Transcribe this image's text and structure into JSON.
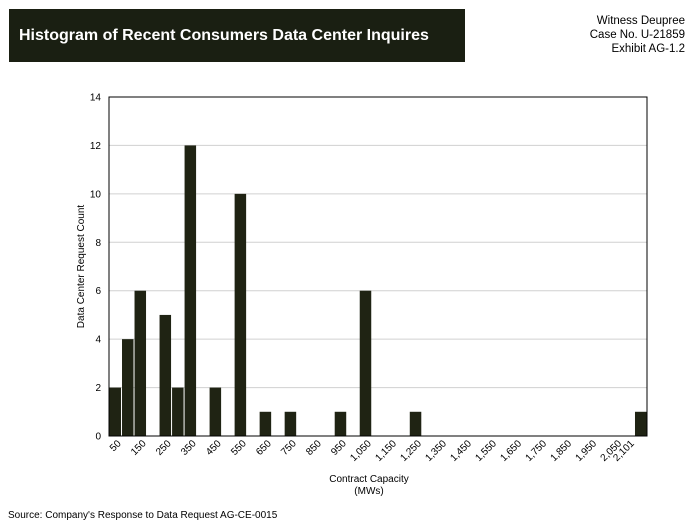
{
  "title": "Histogram of Recent Consumers Data Center Inquires",
  "exhibit": {
    "witness": "Witness Deupree",
    "case": "Case No. U-21859",
    "exhibit": "Exhibit AG-1.2"
  },
  "source": "Source: Company's Response to Data Request AG-CE-0015",
  "colors": {
    "banner": "#1a1f12",
    "bar": "#1f2313",
    "grid": "#d0d0d0"
  },
  "chart_data": {
    "type": "bar",
    "title": "Histogram of Recent Consumers Data Center Inquires",
    "xlabel": "Contract Capacity",
    "xlabel_unit": "(MWs)",
    "ylabel": "Data Center Request Count",
    "ylim": [
      0,
      14
    ],
    "yticks": [
      0,
      2,
      4,
      6,
      8,
      10,
      12,
      14
    ],
    "grid": true,
    "xlim": [
      0,
      2150
    ],
    "bin_width": 50,
    "xticks": [
      {
        "value": 50,
        "label": "50"
      },
      {
        "value": 150,
        "label": "150"
      },
      {
        "value": 250,
        "label": "250"
      },
      {
        "value": 350,
        "label": "350"
      },
      {
        "value": 450,
        "label": "450"
      },
      {
        "value": 550,
        "label": "550"
      },
      {
        "value": 650,
        "label": "650"
      },
      {
        "value": 750,
        "label": "750"
      },
      {
        "value": 850,
        "label": "850"
      },
      {
        "value": 950,
        "label": "950"
      },
      {
        "value": 1050,
        "label": "1,050"
      },
      {
        "value": 1150,
        "label": "1,150"
      },
      {
        "value": 1250,
        "label": "1,250"
      },
      {
        "value": 1350,
        "label": "1,350"
      },
      {
        "value": 1450,
        "label": "1,450"
      },
      {
        "value": 1550,
        "label": "1,550"
      },
      {
        "value": 1650,
        "label": "1,650"
      },
      {
        "value": 1750,
        "label": "1,750"
      },
      {
        "value": 1850,
        "label": "1,850"
      },
      {
        "value": 1950,
        "label": "1,950"
      },
      {
        "value": 2050,
        "label": "2,050"
      },
      {
        "value": 2101,
        "label": "2,101"
      }
    ],
    "bins": [
      {
        "start": 0,
        "count": 2
      },
      {
        "start": 50,
        "count": 4
      },
      {
        "start": 100,
        "count": 6
      },
      {
        "start": 200,
        "count": 5
      },
      {
        "start": 250,
        "count": 2
      },
      {
        "start": 300,
        "count": 12
      },
      {
        "start": 400,
        "count": 2
      },
      {
        "start": 500,
        "count": 10
      },
      {
        "start": 600,
        "count": 1
      },
      {
        "start": 700,
        "count": 1
      },
      {
        "start": 900,
        "count": 1
      },
      {
        "start": 1000,
        "count": 6
      },
      {
        "start": 1200,
        "count": 1
      },
      {
        "start": 2100,
        "count": 1
      }
    ]
  }
}
